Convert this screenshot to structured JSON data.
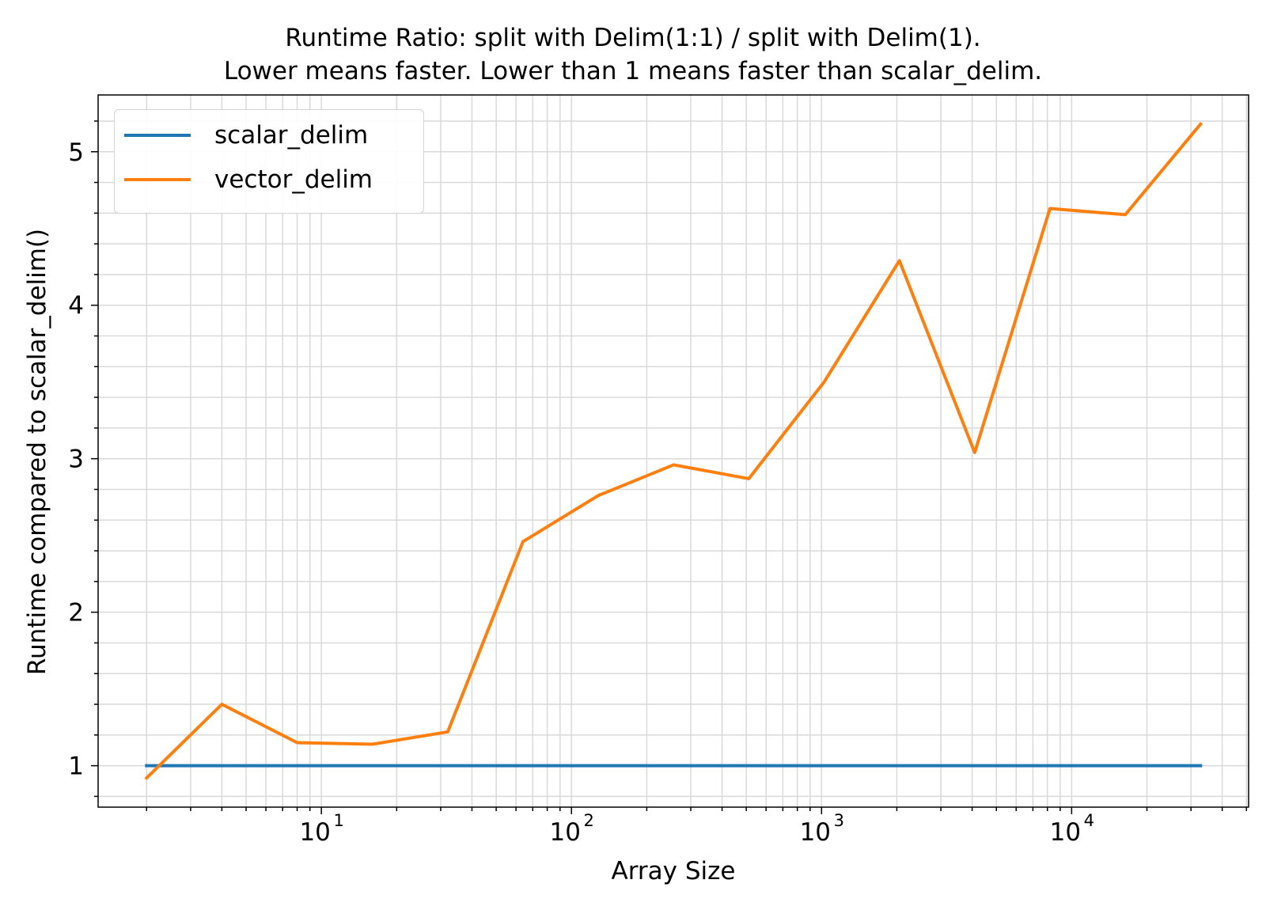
{
  "chart_data": {
    "type": "line",
    "title_lines": [
      "Runtime Ratio: split with Delim(1:1) / split with Delim(1).",
      "Lower means faster. Lower than 1 means faster than scalar_delim."
    ],
    "xlabel": "Array Size",
    "ylabel": "Runtime compared to scalar_delim()",
    "x_scale": "log",
    "xlim": [
      1.28,
      51000
    ],
    "ylim": [
      0.73,
      5.37
    ],
    "x_ticks": [
      {
        "value": 10,
        "base": "10",
        "exp": "1"
      },
      {
        "value": 100,
        "base": "10",
        "exp": "2"
      },
      {
        "value": 1000,
        "base": "10",
        "exp": "3"
      },
      {
        "value": 10000,
        "base": "10",
        "exp": "4"
      }
    ],
    "y_ticks": [
      1,
      2,
      3,
      4,
      5
    ],
    "grid": true,
    "legend_position": "top-left",
    "x": [
      2,
      4,
      8,
      16,
      32,
      64,
      128,
      256,
      512,
      1024,
      2048,
      4096,
      8192,
      16384,
      32768
    ],
    "series": [
      {
        "name": "scalar_delim",
        "color": "#1f77b4",
        "values": [
          1,
          1,
          1,
          1,
          1,
          1,
          1,
          1,
          1,
          1,
          1,
          1,
          1,
          1,
          1
        ]
      },
      {
        "name": "vector_delim",
        "color": "#ff7f0e",
        "values": [
          0.92,
          1.4,
          1.15,
          1.14,
          1.22,
          2.46,
          2.76,
          2.96,
          2.87,
          3.5,
          4.29,
          3.04,
          4.63,
          4.59,
          5.18
        ]
      }
    ]
  }
}
